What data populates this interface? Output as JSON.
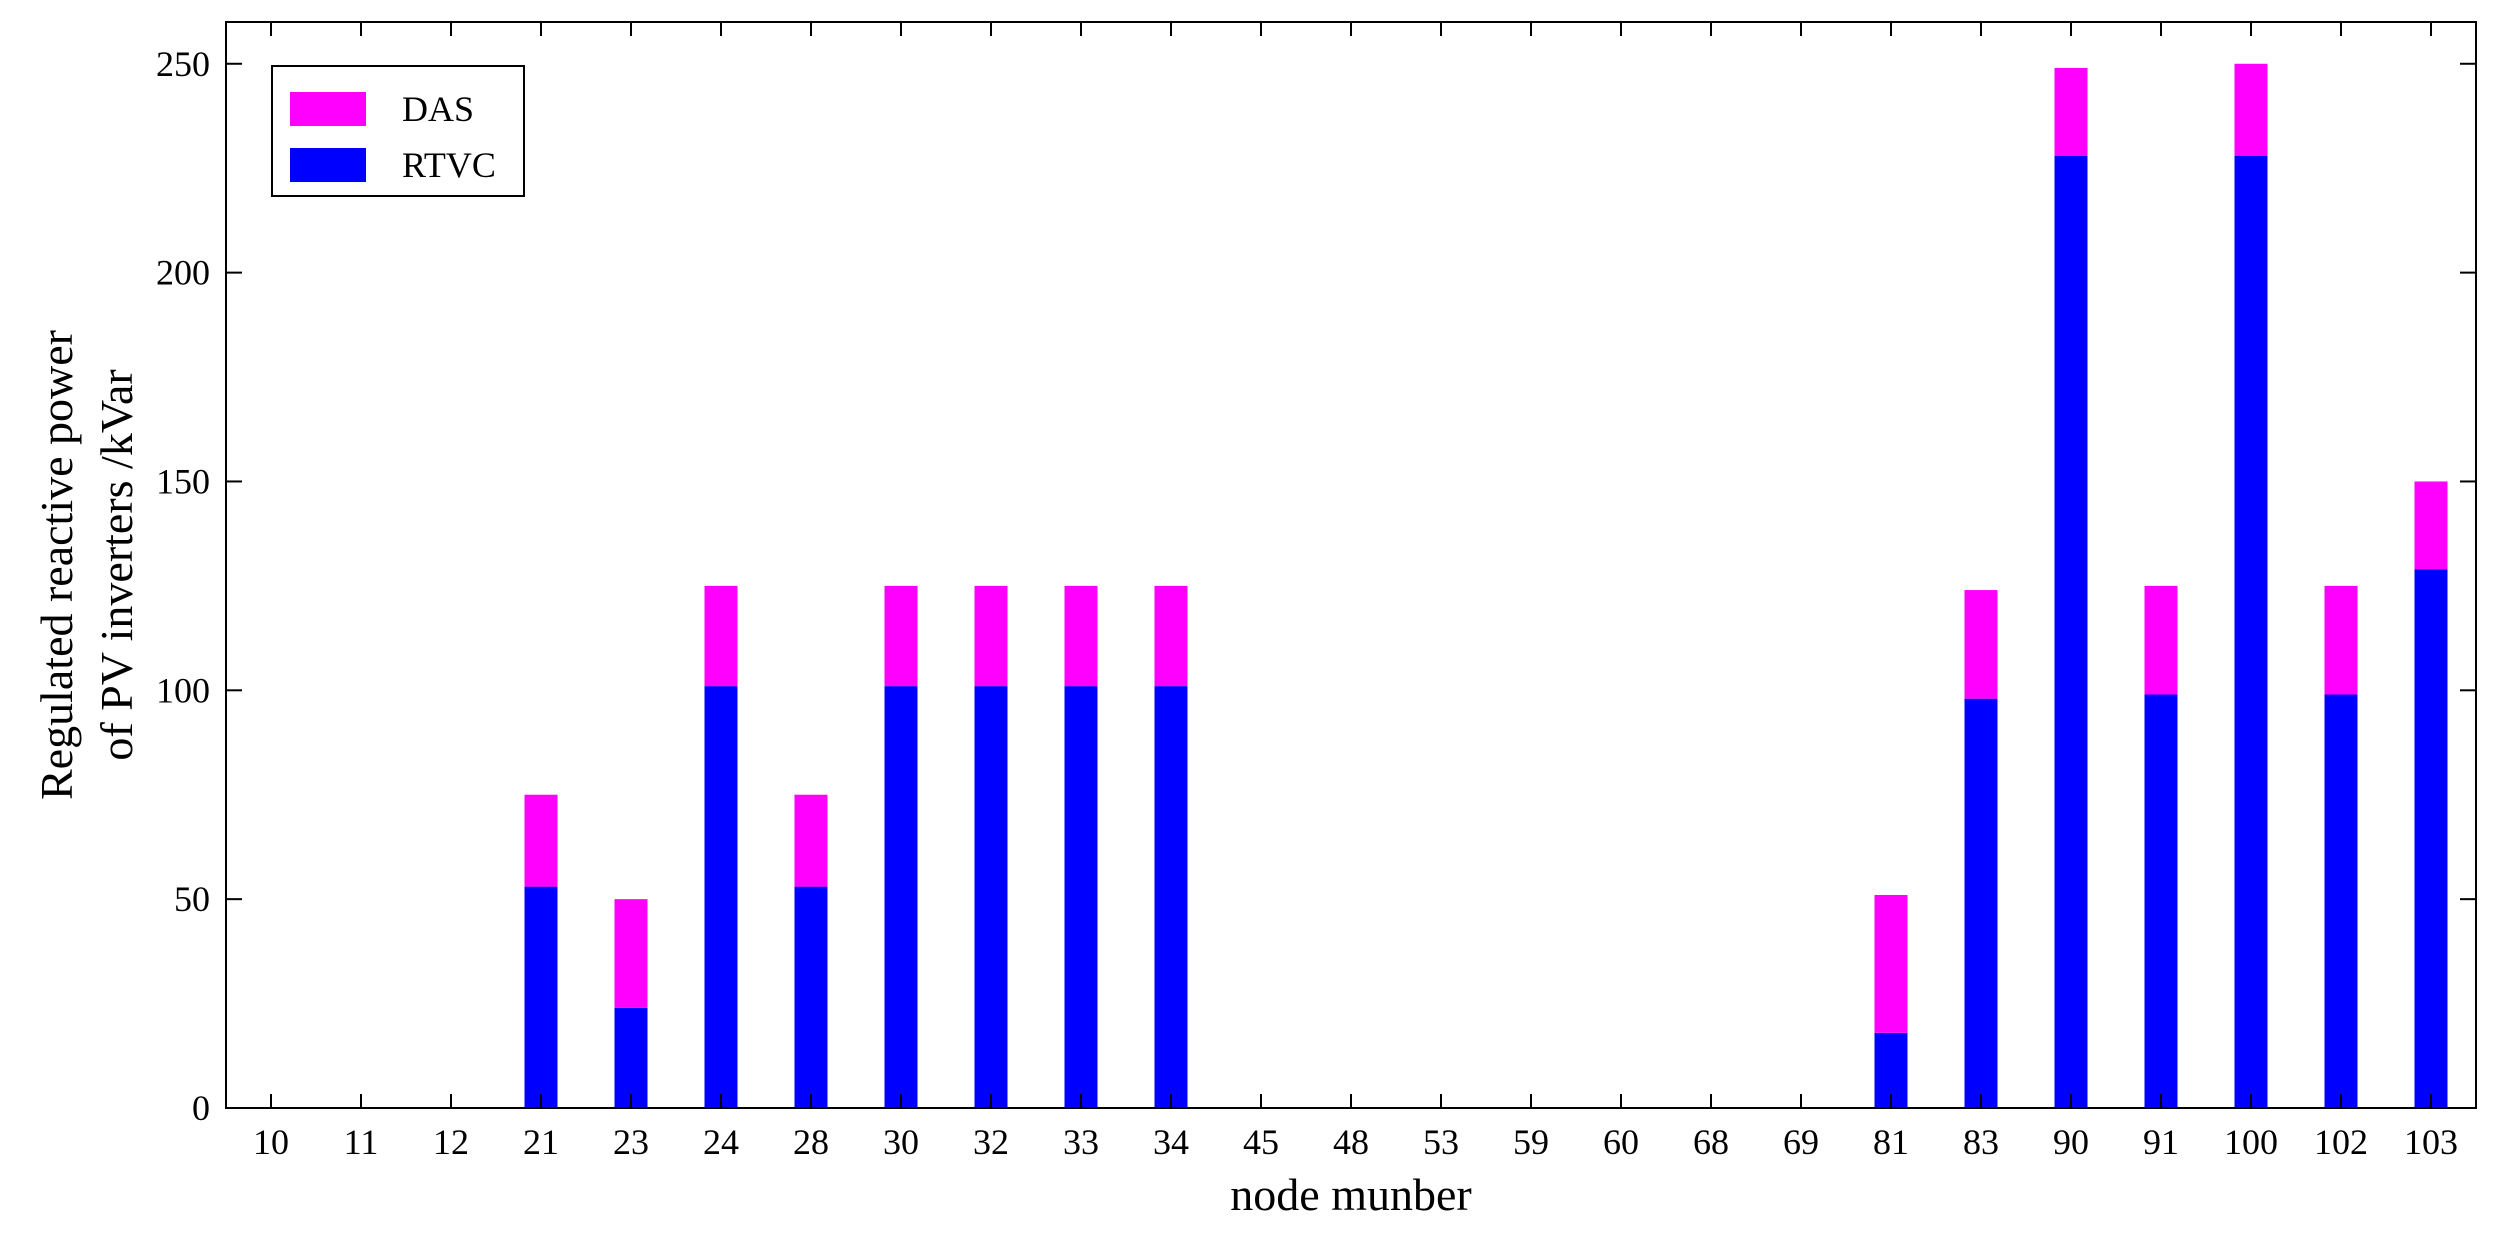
{
  "chart_data": {
    "type": "bar",
    "stacked": true,
    "title": "",
    "xlabel": "node munber",
    "ylabel": [
      "Regulated reactive power",
      "of PV inverters /kVar"
    ],
    "categories": [
      "10",
      "11",
      "12",
      "21",
      "23",
      "24",
      "28",
      "30",
      "32",
      "33",
      "34",
      "45",
      "48",
      "53",
      "59",
      "60",
      "68",
      "69",
      "81",
      "83",
      "90",
      "91",
      "100",
      "102",
      "103"
    ],
    "ylim": [
      0,
      260
    ],
    "yticks": [
      0,
      50,
      100,
      150,
      200,
      250
    ],
    "grid": false,
    "legend_position": "top-left",
    "series": [
      {
        "name": "RTVC",
        "color": "#0000ff",
        "values": [
          0,
          0,
          0,
          53,
          24,
          101,
          53,
          101,
          101,
          101,
          101,
          0,
          0,
          0,
          0,
          0,
          0,
          0,
          18,
          98,
          228,
          99,
          228,
          99,
          129
        ]
      },
      {
        "name": "DAS",
        "color": "#ff00ff",
        "values": [
          0,
          0,
          0,
          22,
          26,
          24,
          22,
          24,
          24,
          24,
          24,
          0,
          0,
          0,
          0,
          0,
          0,
          0,
          33,
          26,
          21,
          26,
          22,
          26,
          21
        ]
      }
    ],
    "legend": [
      {
        "label": "DAS",
        "color": "#ff00ff"
      },
      {
        "label": "RTVC",
        "color": "#0000ff"
      }
    ]
  }
}
